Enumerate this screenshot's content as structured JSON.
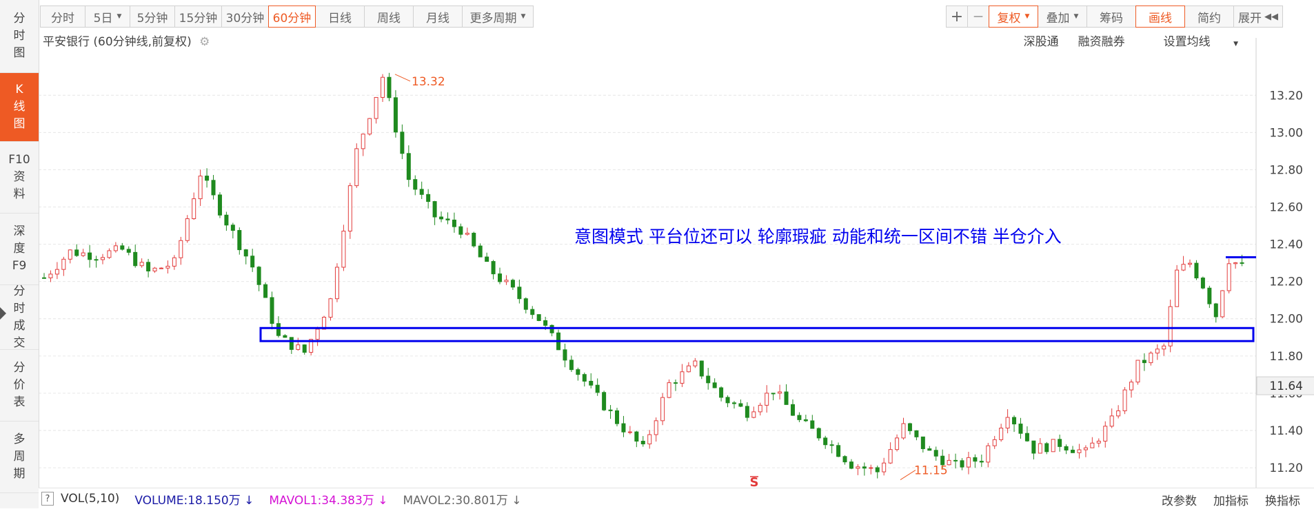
{
  "sidebar": {
    "items": [
      {
        "label": "分\n时\n图"
      },
      {
        "label": "K\n线\n图",
        "active": true
      },
      {
        "label": "F10\n资\n料"
      },
      {
        "label": "深\n度\nF9"
      },
      {
        "label": "分\n时\n成\n交"
      },
      {
        "label": "分\n价\n表"
      },
      {
        "label": "多\n周\n期"
      }
    ]
  },
  "toolbar": {
    "periods": [
      "分时",
      "5日",
      "5分钟",
      "15分钟",
      "30分钟",
      "60分钟",
      "日线",
      "周线",
      "月线",
      "更多周期"
    ],
    "active_period": "60分钟",
    "right_buttons": [
      "+",
      "—",
      "复权",
      "叠加",
      "筹码",
      "画线",
      "简约",
      "展开"
    ],
    "expand_icon": "double-chevron-left-icon"
  },
  "header": {
    "title": "平安银行",
    "subtitle": "(60分钟线,前复权)",
    "gear_icon": "gear-icon",
    "links": [
      "深股通",
      "融资融券",
      "设置均线"
    ]
  },
  "chart_data": {
    "type": "candlestick",
    "stock": "平安银行",
    "period": "60分钟",
    "adjustment": "前复权",
    "y_ticks": [
      13.2,
      13.0,
      12.8,
      12.6,
      12.4,
      12.2,
      12.0,
      11.8,
      11.6,
      11.4,
      11.2
    ],
    "ylim": [
      11.13,
      13.36
    ],
    "current_price": "11.64",
    "high_label": "13.32",
    "low_label": "11.15",
    "annotation": "意图模式 平台位还可以 轮廓瑕疵 动能和统一区间不错 半仓介入",
    "signal_marker": "S",
    "platform_zone": [
      11.88,
      11.95
    ],
    "price_path": [
      [
        0,
        12.22
      ],
      [
        4,
        12.36
      ],
      [
        8,
        12.34
      ],
      [
        12,
        12.37
      ],
      [
        16,
        12.25
      ],
      [
        20,
        12.3
      ],
      [
        24,
        12.78
      ],
      [
        28,
        12.52
      ],
      [
        32,
        12.28
      ],
      [
        36,
        11.9
      ],
      [
        40,
        11.82
      ],
      [
        44,
        12.1
      ],
      [
        48,
        12.9
      ],
      [
        52,
        13.3
      ],
      [
        56,
        12.75
      ],
      [
        60,
        12.55
      ],
      [
        64,
        12.48
      ],
      [
        68,
        12.28
      ],
      [
        72,
        12.15
      ],
      [
        76,
        12.0
      ],
      [
        80,
        11.8
      ],
      [
        84,
        11.62
      ],
      [
        88,
        11.45
      ],
      [
        92,
        11.3
      ],
      [
        96,
        11.65
      ],
      [
        100,
        11.75
      ],
      [
        104,
        11.58
      ],
      [
        108,
        11.5
      ],
      [
        112,
        11.62
      ],
      [
        116,
        11.45
      ],
      [
        120,
        11.35
      ],
      [
        124,
        11.22
      ],
      [
        128,
        11.18
      ],
      [
        132,
        11.42
      ],
      [
        136,
        11.28
      ],
      [
        140,
        11.21
      ],
      [
        144,
        11.25
      ],
      [
        148,
        11.5
      ],
      [
        152,
        11.3
      ],
      [
        156,
        11.33
      ],
      [
        160,
        11.28
      ],
      [
        164,
        11.45
      ],
      [
        168,
        11.75
      ],
      [
        172,
        11.85
      ],
      [
        174,
        12.25
      ],
      [
        176,
        12.3
      ],
      [
        178,
        12.18
      ],
      [
        180,
        12.02
      ],
      [
        182,
        12.32
      ],
      [
        184,
        12.28
      ]
    ]
  },
  "footer": {
    "help": "?",
    "vol": "VOL(5,10)",
    "volume": "VOLUME:18.150万",
    "mavol1": "MAVOL1:34.383万",
    "mavol2": "MAVOL2:30.801万",
    "links": [
      "改参数",
      "加指标",
      "换指标"
    ],
    "colors": {
      "volume": "#1a1aa6",
      "mavol1": "#d411d4",
      "mavol2": "#666666",
      "up": "#e23b3b",
      "down": "#1f8a1f",
      "annotation": "#0000ee"
    }
  }
}
